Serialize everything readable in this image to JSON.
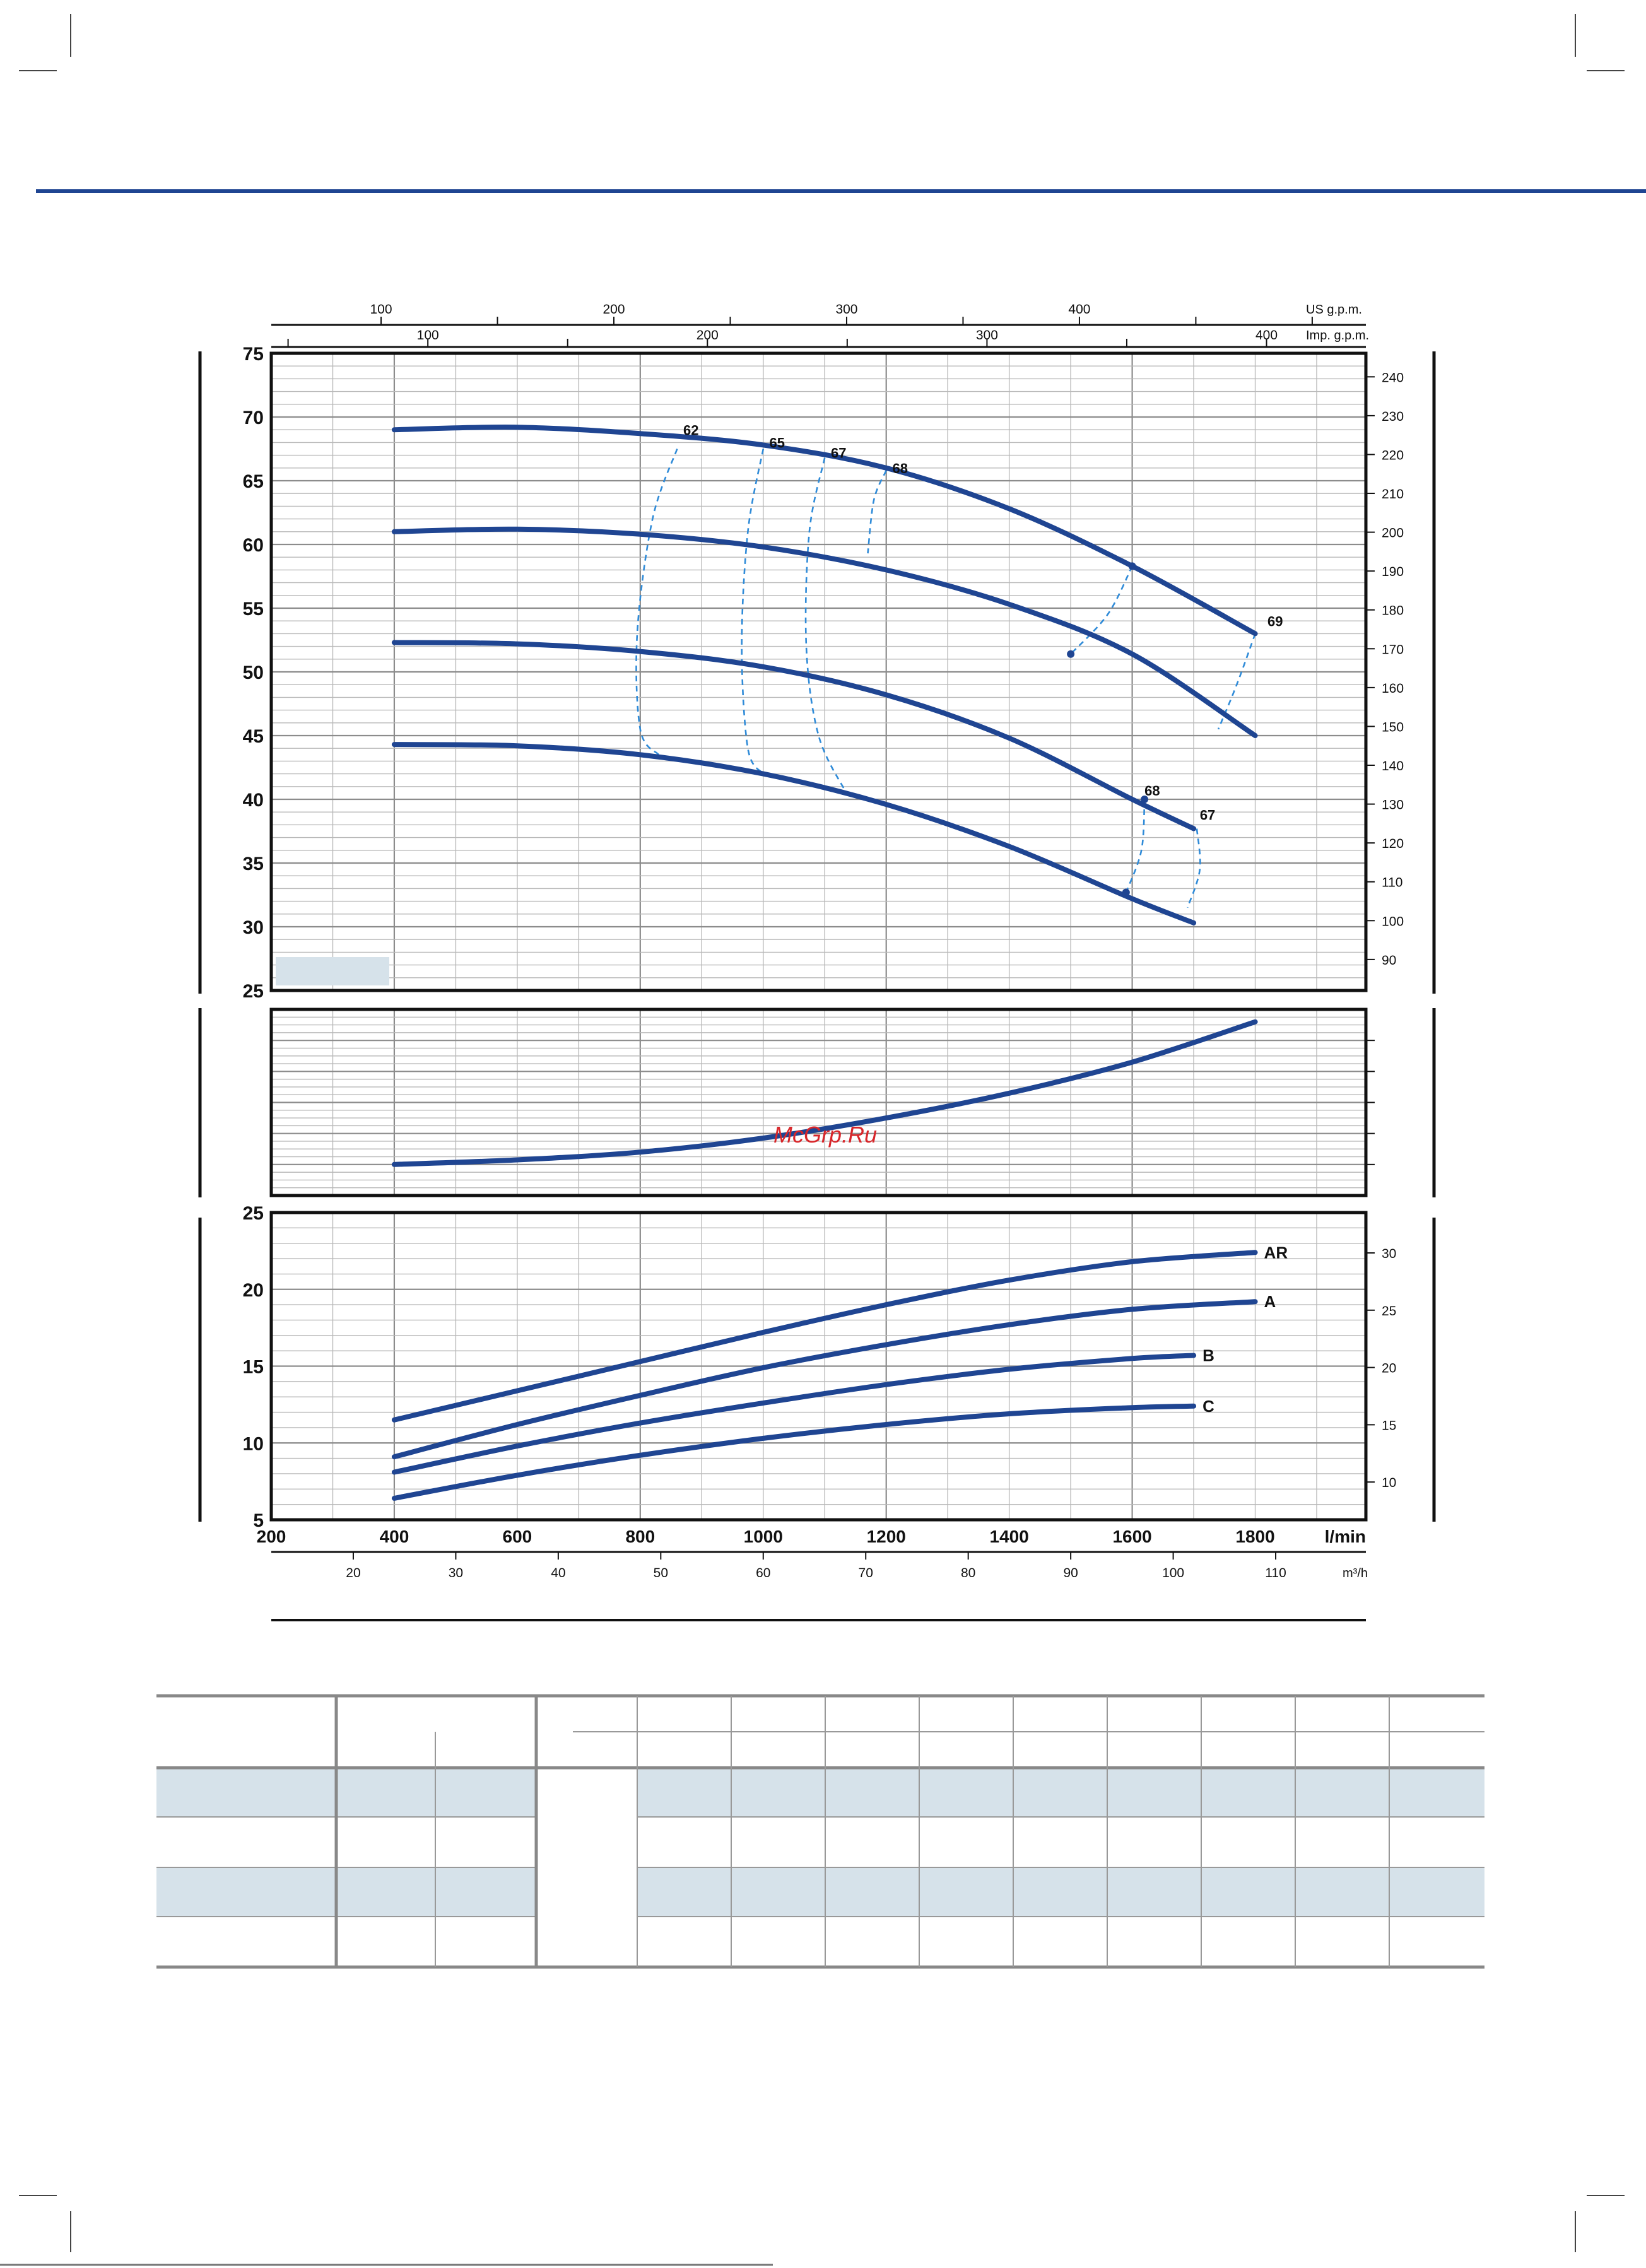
{
  "watermark": "McGrp.Ru",
  "colors": {
    "curve": "#1f4592",
    "iso": "#2f8bd8",
    "rule": "#1f4592",
    "table_band": "#d6e2ea",
    "watermark": "#d8262a"
  },
  "chart_data": [
    {
      "id": "head",
      "type": "line",
      "title": "",
      "x_unit_label": "l/min",
      "xlim": [
        200,
        1980
      ],
      "ylim": [
        25,
        75
      ],
      "y_ticks": [
        25,
        30,
        35,
        40,
        45,
        50,
        55,
        60,
        65,
        70,
        75
      ],
      "y2_ticks": [
        90,
        100,
        110,
        120,
        130,
        140,
        150,
        160,
        170,
        180,
        190,
        200,
        210,
        220,
        230,
        240
      ],
      "top_axis_us": {
        "label": "US g.p.m.",
        "ticks": [
          100,
          200,
          300,
          400
        ]
      },
      "top_axis_imp": {
        "label": "Imp. g.p.m.",
        "ticks": [
          100,
          200,
          300,
          400
        ]
      },
      "series": [
        {
          "values": [
            [
              400,
              69.0
            ],
            [
              600,
              69.2
            ],
            [
              800,
              68.7
            ],
            [
              1000,
              67.8
            ],
            [
              1200,
              66.0
            ],
            [
              1400,
              62.8
            ],
            [
              1600,
              58.3
            ],
            [
              1800,
              53.0
            ]
          ]
        },
        {
          "values": [
            [
              400,
              61.0
            ],
            [
              600,
              61.2
            ],
            [
              800,
              60.8
            ],
            [
              1000,
              59.8
            ],
            [
              1200,
              58.0
            ],
            [
              1400,
              55.3
            ],
            [
              1600,
              51.4
            ],
            [
              1800,
              45.0
            ]
          ]
        },
        {
          "values": [
            [
              400,
              52.3
            ],
            [
              600,
              52.2
            ],
            [
              800,
              51.6
            ],
            [
              1000,
              50.4
            ],
            [
              1200,
              48.2
            ],
            [
              1400,
              44.8
            ],
            [
              1600,
              40.0
            ],
            [
              1700,
              37.7
            ]
          ]
        },
        {
          "values": [
            [
              400,
              44.3
            ],
            [
              600,
              44.2
            ],
            [
              800,
              43.5
            ],
            [
              1000,
              42.0
            ],
            [
              1200,
              39.6
            ],
            [
              1400,
              36.3
            ],
            [
              1600,
              32.2
            ],
            [
              1700,
              30.3
            ]
          ]
        }
      ],
      "efficiency_labels": [
        {
          "label": "62",
          "x": 870,
          "y": 68.6
        },
        {
          "label": "65",
          "x": 1010,
          "y": 67.6
        },
        {
          "label": "67",
          "x": 1110,
          "y": 66.8
        },
        {
          "label": "68",
          "x": 1210,
          "y": 65.6
        },
        {
          "label": "69",
          "x": 1820,
          "y": 53.6
        },
        {
          "label": "68",
          "x": 1620,
          "y": 40.3
        },
        {
          "label": "67",
          "x": 1710,
          "y": 38.4
        }
      ],
      "efficiency_curves": [
        {
          "label": "62",
          "points": [
            [
              860,
              67.5
            ],
            [
              820,
              62.0
            ],
            [
              795,
              53.0
            ],
            [
              800,
              45.5
            ],
            [
              830,
              43.5
            ]
          ]
        },
        {
          "label": "65",
          "points": [
            [
              1000,
              67.5
            ],
            [
              975,
              61.0
            ],
            [
              965,
              52.0
            ],
            [
              975,
              44.0
            ],
            [
              1000,
              42.0
            ]
          ]
        },
        {
          "label": "67",
          "points": [
            [
              1100,
              66.8
            ],
            [
              1075,
              61.0
            ],
            [
              1070,
              52.0
            ],
            [
              1090,
              45.0
            ],
            [
              1135,
              40.5
            ]
          ]
        },
        {
          "label": "68",
          "points": [
            [
              1200,
              65.8
            ],
            [
              1180,
              63.5
            ],
            [
              1170,
              59.3
            ]
          ]
        },
        {
          "label": "68",
          "points": [
            [
              1600,
              58.3
            ],
            [
              1560,
              54.5
            ],
            [
              1500,
              51.4
            ]
          ]
        },
        {
          "label": "69",
          "points": [
            [
              1800,
              53.0
            ],
            [
              1770,
              49.0
            ],
            [
              1740,
              45.5
            ]
          ]
        },
        {
          "label": "68",
          "points": [
            [
              1620,
              40.0
            ],
            [
              1615,
              36.0
            ],
            [
              1590,
              32.7
            ]
          ]
        },
        {
          "label": "67",
          "points": [
            [
              1705,
              37.7
            ],
            [
              1710,
              34.5
            ],
            [
              1690,
              31.5
            ]
          ]
        }
      ],
      "markers": [
        [
          1600,
          58.3
        ],
        [
          1500,
          51.4
        ],
        [
          1620,
          40.0
        ],
        [
          1590,
          32.7
        ]
      ]
    },
    {
      "id": "npsh",
      "type": "line",
      "title": "",
      "xlim": [
        200,
        1980
      ],
      "ylim": [
        0,
        6
      ],
      "series": [
        {
          "values": [
            [
              400,
              1.0
            ],
            [
              600,
              1.15
            ],
            [
              800,
              1.4
            ],
            [
              1000,
              1.85
            ],
            [
              1200,
              2.5
            ],
            [
              1400,
              3.3
            ],
            [
              1600,
              4.3
            ],
            [
              1800,
              5.6
            ]
          ]
        }
      ]
    },
    {
      "id": "power",
      "type": "line",
      "title": "",
      "xlim": [
        200,
        1980
      ],
      "ylim": [
        5,
        25
      ],
      "x_ticks": [
        200,
        400,
        600,
        800,
        1000,
        1200,
        1400,
        1600,
        1800
      ],
      "x_unit_label": "l/min",
      "y_ticks": [
        5,
        10,
        15,
        20,
        25
      ],
      "y2_ticks": [
        10,
        15,
        20,
        25,
        30
      ],
      "m3h_axis": {
        "label": "m³/h",
        "ticks": [
          20,
          30,
          40,
          50,
          60,
          70,
          80,
          90,
          100,
          110
        ]
      },
      "series": [
        {
          "name": "AR",
          "values": [
            [
              400,
              11.5
            ],
            [
              600,
              13.4
            ],
            [
              800,
              15.3
            ],
            [
              1000,
              17.2
            ],
            [
              1200,
              19.0
            ],
            [
              1400,
              20.6
            ],
            [
              1600,
              21.8
            ],
            [
              1800,
              22.4
            ]
          ]
        },
        {
          "name": "A",
          "values": [
            [
              400,
              9.1
            ],
            [
              600,
              11.2
            ],
            [
              800,
              13.1
            ],
            [
              1000,
              14.9
            ],
            [
              1200,
              16.4
            ],
            [
              1400,
              17.7
            ],
            [
              1600,
              18.7
            ],
            [
              1800,
              19.2
            ]
          ]
        },
        {
          "name": "B",
          "values": [
            [
              400,
              8.1
            ],
            [
              600,
              9.8
            ],
            [
              800,
              11.3
            ],
            [
              1000,
              12.6
            ],
            [
              1200,
              13.8
            ],
            [
              1400,
              14.8
            ],
            [
              1600,
              15.5
            ],
            [
              1700,
              15.7
            ]
          ]
        },
        {
          "name": "C",
          "values": [
            [
              400,
              6.4
            ],
            [
              600,
              7.9
            ],
            [
              800,
              9.2
            ],
            [
              1000,
              10.3
            ],
            [
              1200,
              11.2
            ],
            [
              1400,
              11.9
            ],
            [
              1600,
              12.3
            ],
            [
              1700,
              12.4
            ]
          ]
        }
      ]
    }
  ]
}
